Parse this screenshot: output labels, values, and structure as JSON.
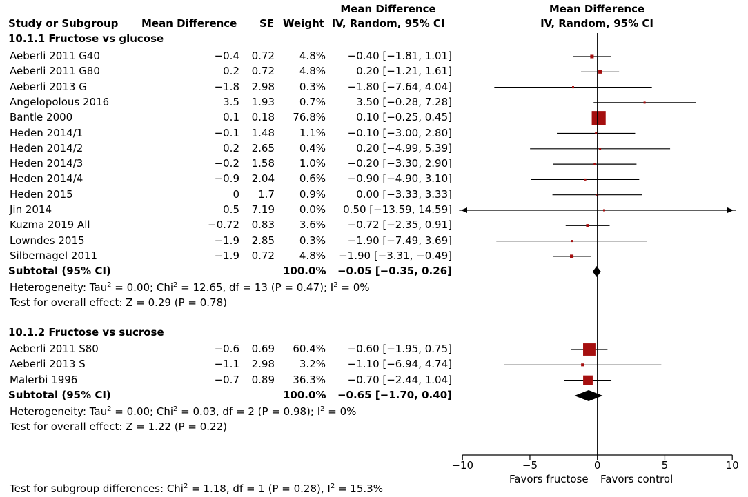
{
  "header": {
    "study_col": "Study or Subgroup",
    "md_col": "Mean Difference",
    "se_col": "SE",
    "weight_col": "Weight",
    "ci_col_line1": "Mean Difference",
    "ci_col_line2": "IV, Random, 95% CI",
    "plot_col_line1": "Mean Difference",
    "plot_col_line2": "IV, Random, 95% CI"
  },
  "chart_data": {
    "type": "forest",
    "xlim": [
      -10,
      10
    ],
    "ticks": [
      -10,
      -5,
      0,
      5,
      10
    ],
    "tick_labels": [
      "−10",
      "−5",
      "0",
      "5",
      "10"
    ],
    "favors_left": "Favors fructose",
    "favors_right": "Favors control",
    "subgroups": [
      {
        "title": "10.1.1 Fructose vs glucose",
        "studies": [
          {
            "name": "Aeberli 2011 G40",
            "md": "−0.4",
            "se": "0.72",
            "weight": "4.8%",
            "ci_text": "−0.40 [−1.81, 1.01]",
            "est": -0.4,
            "lo": -1.81,
            "hi": 1.01,
            "w": 4.8
          },
          {
            "name": "Aeberli 2011 G80",
            "md": "0.2",
            "se": "0.72",
            "weight": "4.8%",
            "ci_text": "0.20 [−1.21, 1.61]",
            "est": 0.2,
            "lo": -1.21,
            "hi": 1.61,
            "w": 4.8
          },
          {
            "name": "Aeberli 2013 G",
            "md": "−1.8",
            "se": "2.98",
            "weight": "0.3%",
            "ci_text": "−1.80 [−7.64, 4.04]",
            "est": -1.8,
            "lo": -7.64,
            "hi": 4.04,
            "w": 0.3
          },
          {
            "name": "Angelopolous 2016",
            "md": "3.5",
            "se": "1.93",
            "weight": "0.7%",
            "ci_text": "3.50 [−0.28, 7.28]",
            "est": 3.5,
            "lo": -0.28,
            "hi": 7.28,
            "w": 0.7
          },
          {
            "name": "Bantle 2000",
            "md": "0.1",
            "se": "0.18",
            "weight": "76.8%",
            "ci_text": "0.10 [−0.25, 0.45]",
            "est": 0.1,
            "lo": -0.25,
            "hi": 0.45,
            "w": 76.8
          },
          {
            "name": "Heden 2014/1",
            "md": "−0.1",
            "se": "1.48",
            "weight": "1.1%",
            "ci_text": "−0.10 [−3.00, 2.80]",
            "est": -0.1,
            "lo": -3.0,
            "hi": 2.8,
            "w": 1.1
          },
          {
            "name": "Heden 2014/2",
            "md": "0.2",
            "se": "2.65",
            "weight": "0.4%",
            "ci_text": "0.20 [−4.99, 5.39]",
            "est": 0.2,
            "lo": -4.99,
            "hi": 5.39,
            "w": 0.4
          },
          {
            "name": "Heden 2014/3",
            "md": "−0.2",
            "se": "1.58",
            "weight": "1.0%",
            "ci_text": "−0.20 [−3.30, 2.90]",
            "est": -0.2,
            "lo": -3.3,
            "hi": 2.9,
            "w": 1.0
          },
          {
            "name": "Heden 2014/4",
            "md": "−0.9",
            "se": "2.04",
            "weight": "0.6%",
            "ci_text": "−0.90 [−4.90, 3.10]",
            "est": -0.9,
            "lo": -4.9,
            "hi": 3.1,
            "w": 0.6
          },
          {
            "name": "Heden 2015",
            "md": "0",
            "se": "1.7",
            "weight": "0.9%",
            "ci_text": "0.00 [−3.33, 3.33]",
            "est": 0.0,
            "lo": -3.33,
            "hi": 3.33,
            "w": 0.9
          },
          {
            "name": "Jin 2014",
            "md": "0.5",
            "se": "7.19",
            "weight": "0.0%",
            "ci_text": "0.50 [−13.59, 14.59]",
            "est": 0.5,
            "lo": -13.59,
            "hi": 14.59,
            "w": 0.0
          },
          {
            "name": "Kuzma 2019 All",
            "md": "−0.72",
            "se": "0.83",
            "weight": "3.6%",
            "ci_text": "−0.72 [−2.35, 0.91]",
            "est": -0.72,
            "lo": -2.35,
            "hi": 0.91,
            "w": 3.6
          },
          {
            "name": "Lowndes 2015",
            "md": "−1.9",
            "se": "2.85",
            "weight": "0.3%",
            "ci_text": "−1.90 [−7.49, 3.69]",
            "est": -1.9,
            "lo": -7.49,
            "hi": 3.69,
            "w": 0.3
          },
          {
            "name": "Silbernagel 2011",
            "md": "−1.9",
            "se": "0.72",
            "weight": "4.8%",
            "ci_text": "−1.90 [−3.31, −0.49]",
            "est": -1.9,
            "lo": -3.31,
            "hi": -0.49,
            "w": 4.8
          }
        ],
        "subtotal": {
          "label": "Subtotal (95% CI)",
          "weight": "100.0%",
          "ci_text": "−0.05 [−0.35, 0.26]",
          "est": -0.05,
          "lo": -0.35,
          "hi": 0.26
        },
        "heterogeneity": {
          "pre": "Heterogeneity: Tau",
          "post1": " = 0.00; Chi",
          "post2": " = 12.65, df = 13 (P = 0.47); I",
          "post3": " = 0%",
          "sup": "2"
        },
        "overall_effect": "Test for overall effect: Z = 0.29 (P = 0.78)"
      },
      {
        "title": "10.1.2 Fructose vs sucrose",
        "studies": [
          {
            "name": "Aeberli 2011 S80",
            "md": "−0.6",
            "se": "0.69",
            "weight": "60.4%",
            "ci_text": "−0.60 [−1.95, 0.75]",
            "est": -0.6,
            "lo": -1.95,
            "hi": 0.75,
            "w": 60.4
          },
          {
            "name": "Aeberli 2013 S",
            "md": "−1.1",
            "se": "2.98",
            "weight": "3.2%",
            "ci_text": "−1.10 [−6.94, 4.74]",
            "est": -1.1,
            "lo": -6.94,
            "hi": 4.74,
            "w": 3.2
          },
          {
            "name": "Malerbi 1996",
            "md": "−0.7",
            "se": "0.89",
            "weight": "36.3%",
            "ci_text": "−0.70 [−2.44, 1.04]",
            "est": -0.7,
            "lo": -2.44,
            "hi": 1.04,
            "w": 36.3
          }
        ],
        "subtotal": {
          "label": "Subtotal (95% CI)",
          "weight": "100.0%",
          "ci_text": "−0.65 [−1.70, 0.40]",
          "est": -0.65,
          "lo": -1.7,
          "hi": 0.4
        },
        "heterogeneity": {
          "pre": "Heterogeneity: Tau",
          "post1": " = 0.00; Chi",
          "post2": " = 0.03, df = 2 (P = 0.98); I",
          "post3": " = 0%",
          "sup": "2"
        },
        "overall_effect": "Test for overall effect: Z = 1.22 (P = 0.22)"
      }
    ],
    "subgroup_diff": {
      "pre": "Test for subgroup differences: Chi",
      "post1": " = 1.18, df = 1 (P = 0.28), I",
      "post2": " = 15.3%",
      "sup": "2"
    },
    "colors": {
      "marker": "#a50f0f",
      "line": "#000000",
      "diamond": "#000000"
    }
  }
}
